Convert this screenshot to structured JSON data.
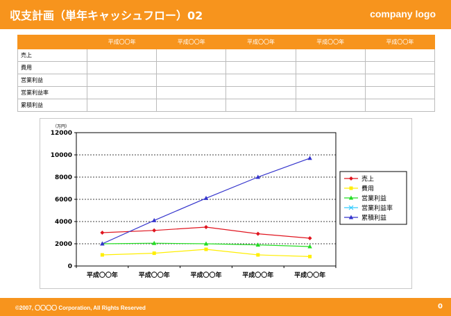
{
  "header": {
    "title": "収支計画（単年キャッシュフロー）02",
    "logo": "company logo"
  },
  "table": {
    "columns": [
      "平成〇〇年",
      "平成〇〇年",
      "平成〇〇年",
      "平成〇〇年",
      "平成〇〇年"
    ],
    "rows": [
      "売上",
      "費用",
      "営業利益",
      "営業利益率",
      "累積利益"
    ]
  },
  "chart_data": {
    "type": "line",
    "unit_label": "（万円）",
    "x": [
      "平成〇〇年",
      "平成〇〇年",
      "平成〇〇年",
      "平成〇〇年",
      "平成〇〇年"
    ],
    "ylim": [
      0,
      12000
    ],
    "yticks": [
      0,
      2000,
      4000,
      6000,
      8000,
      10000,
      12000
    ],
    "grid": true,
    "legend_position": "right",
    "series": [
      {
        "name": "売上",
        "color": "#e0141e",
        "marker": "diamond",
        "values": [
          3000,
          3200,
          3500,
          2900,
          2500
        ]
      },
      {
        "name": "費用",
        "color": "#ffee00",
        "marker": "square",
        "values": [
          1000,
          1150,
          1500,
          1000,
          850
        ]
      },
      {
        "name": "営業利益",
        "color": "#22dd22",
        "marker": "triangle",
        "values": [
          2000,
          2050,
          2000,
          1900,
          1750
        ]
      },
      {
        "name": "営業利益率",
        "color": "#33ccff",
        "marker": "x",
        "values": [
          null,
          null,
          null,
          null,
          null
        ]
      },
      {
        "name": "累積利益",
        "color": "#3333cc",
        "marker": "triangle",
        "values": [
          2000,
          4100,
          6100,
          8000,
          9700
        ]
      }
    ]
  },
  "footer": {
    "copyright": "©2007, 〇〇〇〇 Corporation, All Rights Reserved",
    "page": "0"
  }
}
